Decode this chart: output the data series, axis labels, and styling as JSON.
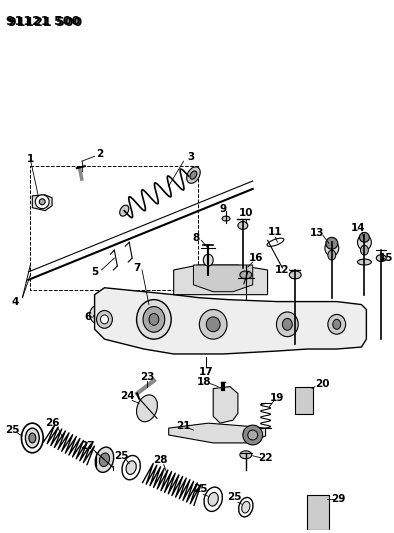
{
  "title": "91121 500",
  "bg_color": "#ffffff",
  "lc": "#000000",
  "figsize": [
    3.94,
    5.33
  ],
  "dpi": 100
}
